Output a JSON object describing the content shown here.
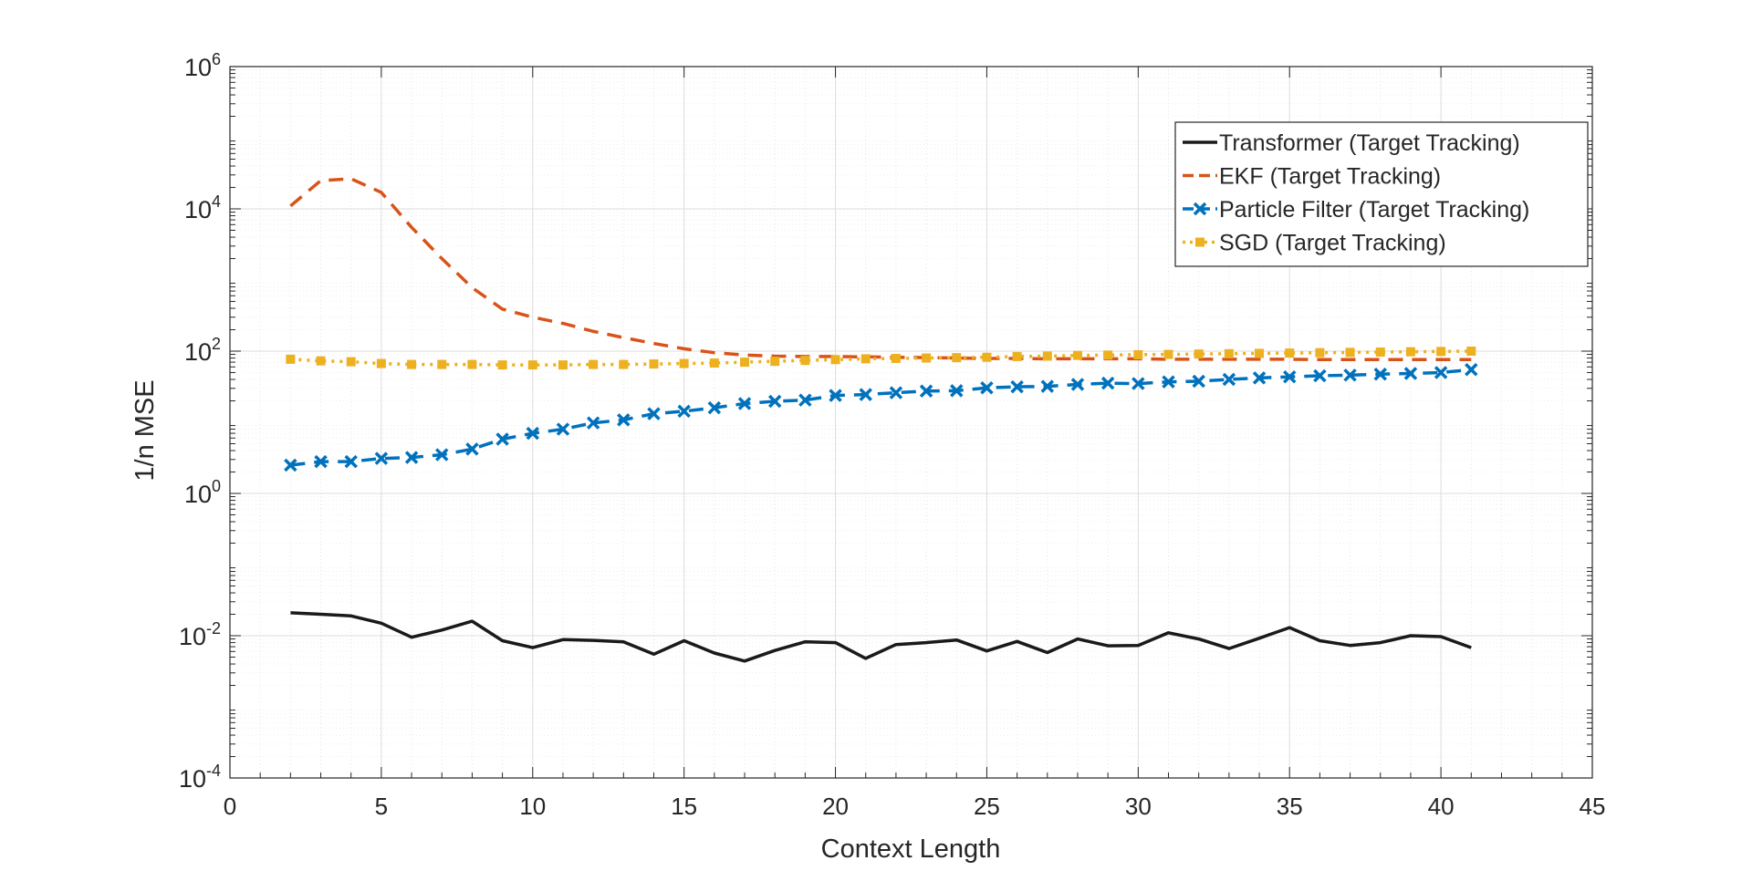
{
  "chart_data": {
    "type": "line",
    "xlabel": "Context Length",
    "ylabel": "1/n MSE",
    "xlim": [
      0,
      45
    ],
    "ylim": [
      0.0001,
      1000000
    ],
    "yscale": "log",
    "grid": true,
    "legend_position": "top-right",
    "x_ticks": [
      0,
      5,
      10,
      15,
      20,
      25,
      30,
      35,
      40,
      45
    ],
    "y_ticks": [
      {
        "base": "10",
        "exp": "-4",
        "value": 0.0001
      },
      {
        "base": "10",
        "exp": "-2",
        "value": 0.01
      },
      {
        "base": "10",
        "exp": "0",
        "value": 1
      },
      {
        "base": "10",
        "exp": "2",
        "value": 100
      },
      {
        "base": "10",
        "exp": "4",
        "value": 10000
      },
      {
        "base": "10",
        "exp": "6",
        "value": 1000000
      }
    ],
    "x": [
      2,
      3,
      4,
      5,
      6,
      7,
      8,
      9,
      10,
      11,
      12,
      13,
      14,
      15,
      16,
      17,
      18,
      19,
      20,
      21,
      22,
      23,
      24,
      25,
      26,
      27,
      28,
      29,
      30,
      31,
      32,
      33,
      34,
      35,
      36,
      37,
      38,
      39,
      40,
      41
    ],
    "series": [
      {
        "name": "Transformer (Target Tracking)",
        "color": "#1a1a1a",
        "style": "solid",
        "marker": "none",
        "values": [
          0.021,
          0.02,
          0.019,
          0.015,
          0.0095,
          0.012,
          0.016,
          0.0085,
          0.0068,
          0.0088,
          0.0086,
          0.0082,
          0.0055,
          0.0085,
          0.0057,
          0.0044,
          0.0062,
          0.0082,
          0.008,
          0.0048,
          0.0075,
          0.008,
          0.0087,
          0.0061,
          0.0083,
          0.0058,
          0.009,
          0.0072,
          0.0073,
          0.011,
          0.009,
          0.0066,
          0.0092,
          0.013,
          0.0085,
          0.0073,
          0.008,
          0.01,
          0.0097,
          0.0068
        ]
      },
      {
        "name": "EKF (Target Tracking)",
        "color": "#d95319",
        "style": "dashed",
        "marker": "none",
        "values": [
          11000,
          25000,
          26500,
          17000,
          5500,
          2000,
          780,
          390,
          300,
          245,
          190,
          155,
          128,
          108,
          95,
          88,
          85,
          84,
          84,
          83,
          82,
          81,
          80,
          79,
          79,
          78,
          78,
          78,
          78,
          77,
          77,
          77,
          77,
          77,
          76,
          76,
          76,
          76,
          76,
          76
        ]
      },
      {
        "name": "Particle Filter (Target Tracking)",
        "color": "#0072bd",
        "style": "dashed",
        "marker": "x",
        "values": [
          2.5,
          2.8,
          2.8,
          3.1,
          3.2,
          3.5,
          4.2,
          5.8,
          7.0,
          8.0,
          9.8,
          10.8,
          13.2,
          14.3,
          16.0,
          18.3,
          19.7,
          20.5,
          23.8,
          24.5,
          26.0,
          27.5,
          27.8,
          30.5,
          31.5,
          32.0,
          34.0,
          35.5,
          35.0,
          37.0,
          37.8,
          40.0,
          42.0,
          43.5,
          45.0,
          46.0,
          47.5,
          48.5,
          50.0,
          55.0
        ]
      },
      {
        "name": "SGD (Target Tracking)",
        "color": "#edb120",
        "style": "dotted",
        "marker": "square",
        "values": [
          77,
          73,
          71,
          67,
          65,
          65,
          65,
          64,
          64,
          64,
          65,
          65,
          66,
          67,
          68,
          70,
          72,
          74,
          76,
          78,
          79,
          80,
          81,
          82,
          84,
          85,
          87,
          88,
          89,
          90,
          91,
          92,
          93,
          94,
          95,
          96,
          97,
          98,
          99,
          100
        ]
      }
    ]
  }
}
